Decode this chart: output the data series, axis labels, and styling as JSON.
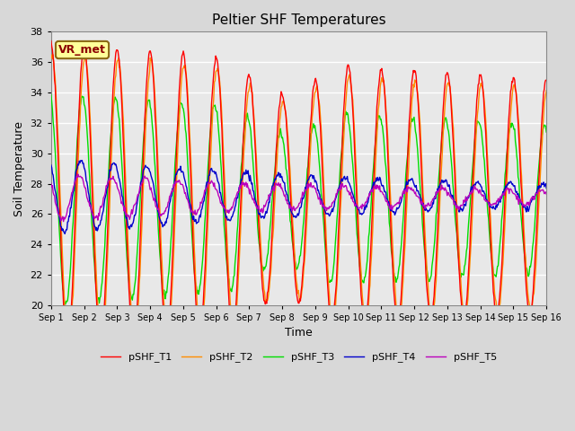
{
  "title": "Peltier SHF Temperatures",
  "xlabel": "Time",
  "ylabel": "Soil Temperature",
  "ylim": [
    20,
    38
  ],
  "yticks": [
    20,
    22,
    24,
    26,
    28,
    30,
    32,
    34,
    36,
    38
  ],
  "xlim": [
    0,
    15
  ],
  "xtick_labels": [
    "Sep 1",
    "Sep 2",
    "Sep 3",
    "Sep 4",
    "Sep 5",
    "Sep 6",
    "Sep 7",
    "Sep 8",
    "Sep 9",
    "Sep 10",
    "Sep 11",
    "Sep 12",
    "Sep 13",
    "Sep 14",
    "Sep 15",
    "Sep 16"
  ],
  "colors": {
    "pSHF_T1": "#FF0000",
    "pSHF_T2": "#FF8C00",
    "pSHF_T3": "#00DD00",
    "pSHF_T4": "#0000CC",
    "pSHF_T5": "#BB00BB"
  },
  "annotation_text": "VR_met",
  "annotation_color": "#8B0000",
  "annotation_bg": "#FFFF99",
  "background_color": "#E8E8E8",
  "grid_color": "#FFFFFF"
}
